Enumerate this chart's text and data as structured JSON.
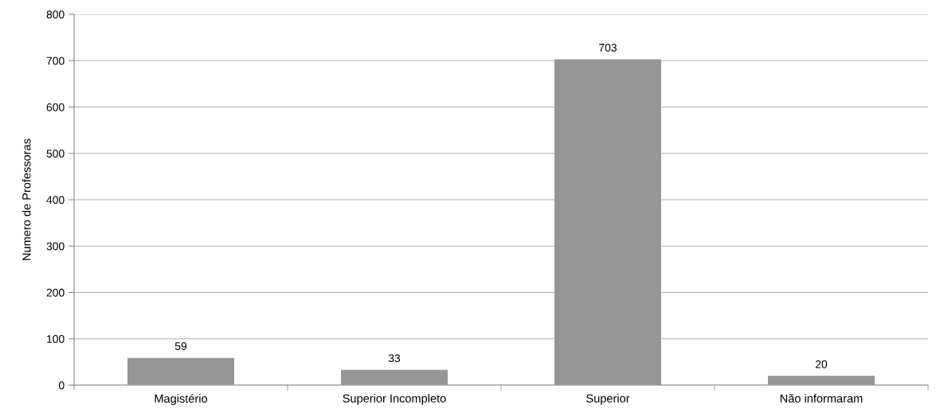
{
  "chart_data": {
    "type": "bar",
    "ylabel": "Numero de Professoras",
    "categories": [
      "Magistério",
      "Superior Incompleto",
      "Superior",
      "Não informaram"
    ],
    "values": [
      59,
      33,
      703,
      20
    ],
    "color": "#969696",
    "ylim": [
      0,
      800
    ],
    "yticks": [
      0,
      100,
      200,
      300,
      400,
      500,
      600,
      700,
      800
    ],
    "grid": "y",
    "data_labels": true
  }
}
